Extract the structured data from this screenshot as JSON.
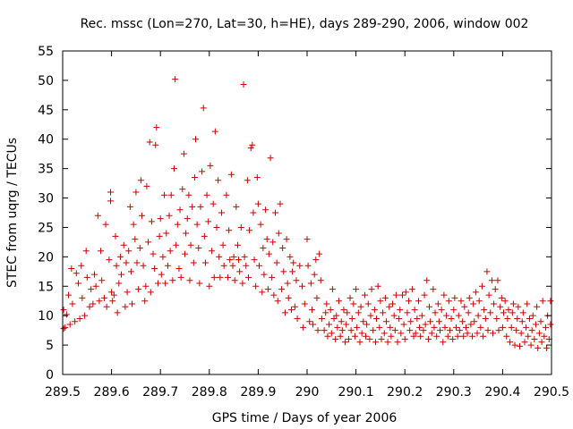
{
  "chart_data": {
    "type": "scatter",
    "title": "Rec. mssc (Lon=270, Lat=30, h=HE), days 289-290, 2006, window 002",
    "xlabel": "GPS time / Days of year 2006",
    "ylabel": "STEC from uqrg / TECUs",
    "xlim": [
      289.5,
      290.5
    ],
    "ylim": [
      0,
      55
    ],
    "x_ticks": [
      289.5,
      289.6,
      289.7,
      289.8,
      289.9,
      290,
      290.1,
      290.2,
      290.3,
      290.4,
      290.5
    ],
    "x_tick_labels": [
      "289.5",
      "289.6",
      "289.7",
      "289.8",
      "289.9",
      "290",
      "290.1",
      "290.2",
      "290.3",
      "290.4",
      "290.5"
    ],
    "y_ticks": [
      0,
      5,
      10,
      15,
      20,
      25,
      30,
      35,
      40,
      45,
      50,
      55
    ],
    "y_tick_labels": [
      "0",
      "5",
      "10",
      "15",
      "20",
      "25",
      "30",
      "35",
      "40",
      "45",
      "50",
      "55"
    ],
    "grid": false,
    "marker": "+",
    "color": "#cc0000",
    "points": [
      [
        289.502,
        7.8
      ],
      [
        289.502,
        11.0
      ],
      [
        289.505,
        8.0
      ],
      [
        289.508,
        10.2
      ],
      [
        289.512,
        13.5
      ],
      [
        289.515,
        8.5
      ],
      [
        289.518,
        18.0
      ],
      [
        289.52,
        12.0
      ],
      [
        289.525,
        9.0
      ],
      [
        289.528,
        17.2
      ],
      [
        289.532,
        15.5
      ],
      [
        289.535,
        9.5
      ],
      [
        289.538,
        18.5
      ],
      [
        289.54,
        13.0
      ],
      [
        289.545,
        10.0
      ],
      [
        289.548,
        21.0
      ],
      [
        289.55,
        16.5
      ],
      [
        289.555,
        11.5
      ],
      [
        289.558,
        14.5
      ],
      [
        289.562,
        12.0
      ],
      [
        289.565,
        17.0
      ],
      [
        289.568,
        15.0
      ],
      [
        289.572,
        27.0
      ],
      [
        289.575,
        12.5
      ],
      [
        289.578,
        21.0
      ],
      [
        289.58,
        16.0
      ],
      [
        289.585,
        13.0
      ],
      [
        289.588,
        25.5
      ],
      [
        289.59,
        11.5
      ],
      [
        289.595,
        19.5
      ],
      [
        289.598,
        31.0
      ],
      [
        289.598,
        29.5
      ],
      [
        289.6,
        14.0
      ],
      [
        289.602,
        12.5
      ],
      [
        289.605,
        13.5
      ],
      [
        289.608,
        23.5
      ],
      [
        289.61,
        18.5
      ],
      [
        289.612,
        10.5
      ],
      [
        289.615,
        15.5
      ],
      [
        289.618,
        20.0
      ],
      [
        289.62,
        17.0
      ],
      [
        289.625,
        22.0
      ],
      [
        289.628,
        11.5
      ],
      [
        289.63,
        19.0
      ],
      [
        289.632,
        14.0
      ],
      [
        289.635,
        21.0
      ],
      [
        289.638,
        28.5
      ],
      [
        289.64,
        17.5
      ],
      [
        289.642,
        12.0
      ],
      [
        289.645,
        25.5
      ],
      [
        289.648,
        23.0
      ],
      [
        289.65,
        31.0
      ],
      [
        289.652,
        19.0
      ],
      [
        289.655,
        14.5
      ],
      [
        289.658,
        21.5
      ],
      [
        289.66,
        33.0
      ],
      [
        289.662,
        27.0
      ],
      [
        289.665,
        18.5
      ],
      [
        289.668,
        12.5
      ],
      [
        289.67,
        15.0
      ],
      [
        289.672,
        32.0
      ],
      [
        289.675,
        22.5
      ],
      [
        289.678,
        39.5
      ],
      [
        289.68,
        14.0
      ],
      [
        289.682,
        26.0
      ],
      [
        289.685,
        20.5
      ],
      [
        289.688,
        18.0
      ],
      [
        289.69,
        39.0
      ],
      [
        289.692,
        42.0
      ],
      [
        289.695,
        15.5
      ],
      [
        289.698,
        23.5
      ],
      [
        289.7,
        26.5
      ],
      [
        289.702,
        17.0
      ],
      [
        289.705,
        20.0
      ],
      [
        289.708,
        30.5
      ],
      [
        289.71,
        15.5
      ],
      [
        289.712,
        24.0
      ],
      [
        289.715,
        18.5
      ],
      [
        289.718,
        27.0
      ],
      [
        289.72,
        21.0
      ],
      [
        289.722,
        30.5
      ],
      [
        289.725,
        16.0
      ],
      [
        289.728,
        35.0
      ],
      [
        289.73,
        50.2
      ],
      [
        289.732,
        22.0
      ],
      [
        289.735,
        25.5
      ],
      [
        289.738,
        18.0
      ],
      [
        289.74,
        28.0
      ],
      [
        289.742,
        16.5
      ],
      [
        289.745,
        31.5
      ],
      [
        289.748,
        37.5
      ],
      [
        289.75,
        20.5
      ],
      [
        289.752,
        24.0
      ],
      [
        289.755,
        26.5
      ],
      [
        289.758,
        30.5
      ],
      [
        289.76,
        16.0
      ],
      [
        289.762,
        22.0
      ],
      [
        289.765,
        28.5
      ],
      [
        289.768,
        19.0
      ],
      [
        289.77,
        33.5
      ],
      [
        289.772,
        40.0
      ],
      [
        289.775,
        25.5
      ],
      [
        289.778,
        21.5
      ],
      [
        289.78,
        15.5
      ],
      [
        289.782,
        28.5
      ],
      [
        289.785,
        34.5
      ],
      [
        289.788,
        45.3
      ],
      [
        289.79,
        23.5
      ],
      [
        289.792,
        19.0
      ],
      [
        289.795,
        30.5
      ],
      [
        289.798,
        26.0
      ],
      [
        289.8,
        15.0
      ],
      [
        289.802,
        35.5
      ],
      [
        289.805,
        21.0
      ],
      [
        289.808,
        29.0
      ],
      [
        289.81,
        16.5
      ],
      [
        289.812,
        41.3
      ],
      [
        289.815,
        25.0
      ],
      [
        289.818,
        33.0
      ],
      [
        289.82,
        20.0
      ],
      [
        289.822,
        16.5
      ],
      [
        289.825,
        27.5
      ],
      [
        289.828,
        22.0
      ],
      [
        289.83,
        18.5
      ],
      [
        289.835,
        30.5
      ],
      [
        289.838,
        16.5
      ],
      [
        289.84,
        24.5
      ],
      [
        289.842,
        19.5
      ],
      [
        289.845,
        34.0
      ],
      [
        289.848,
        18.5
      ],
      [
        289.85,
        20.0
      ],
      [
        289.852,
        16.0
      ],
      [
        289.855,
        28.5
      ],
      [
        289.858,
        22.0
      ],
      [
        289.86,
        19.5
      ],
      [
        289.862,
        17.5
      ],
      [
        289.865,
        25.0
      ],
      [
        289.868,
        15.5
      ],
      [
        289.87,
        49.3
      ],
      [
        289.872,
        20.0
      ],
      [
        289.875,
        18.5
      ],
      [
        289.878,
        33.0
      ],
      [
        289.88,
        16.5
      ],
      [
        289.882,
        24.5
      ],
      [
        289.885,
        38.5
      ],
      [
        289.888,
        39.0
      ],
      [
        289.89,
        27.5
      ],
      [
        289.892,
        19.5
      ],
      [
        289.895,
        15.0
      ],
      [
        289.898,
        33.5
      ],
      [
        289.9,
        29.0
      ],
      [
        289.902,
        18.5
      ],
      [
        289.905,
        25.5
      ],
      [
        289.908,
        14.0
      ],
      [
        289.91,
        21.5
      ],
      [
        289.912,
        17.0
      ],
      [
        289.915,
        28.0
      ],
      [
        289.918,
        23.0
      ],
      [
        289.92,
        14.5
      ],
      [
        289.922,
        20.5
      ],
      [
        289.925,
        36.8
      ],
      [
        289.928,
        16.5
      ],
      [
        289.93,
        22.5
      ],
      [
        289.932,
        13.5
      ],
      [
        289.935,
        27.5
      ],
      [
        289.938,
        19.0
      ],
      [
        289.94,
        12.5
      ],
      [
        289.942,
        24.0
      ],
      [
        289.945,
        29.0
      ],
      [
        289.948,
        14.5
      ],
      [
        289.95,
        21.5
      ],
      [
        289.952,
        17.5
      ],
      [
        289.955,
        10.5
      ],
      [
        289.958,
        23.0
      ],
      [
        289.96,
        15.5
      ],
      [
        289.962,
        13.0
      ],
      [
        289.965,
        20.0
      ],
      [
        289.968,
        11.0
      ],
      [
        289.97,
        17.5
      ],
      [
        289.972,
        19.0
      ],
      [
        289.975,
        11.5
      ],
      [
        289.978,
        16.0
      ],
      [
        289.98,
        9.5
      ],
      [
        289.985,
        18.5
      ],
      [
        289.99,
        15.0
      ],
      [
        289.992,
        8.0
      ],
      [
        289.995,
        12.0
      ],
      [
        290.0,
        23.0
      ],
      [
        290.002,
        18.5
      ],
      [
        290.005,
        9.0
      ],
      [
        290.008,
        15.5
      ],
      [
        290.01,
        11.0
      ],
      [
        290.012,
        8.5
      ],
      [
        290.015,
        17.0
      ],
      [
        290.018,
        19.5
      ],
      [
        290.02,
        13.0
      ],
      [
        290.022,
        7.5
      ],
      [
        290.025,
        20.5
      ],
      [
        290.028,
        16.0
      ],
      [
        290.03,
        9.5
      ],
      [
        290.035,
        7.5
      ],
      [
        290.038,
        10.5
      ],
      [
        290.04,
        12.0
      ],
      [
        290.042,
        6.5
      ],
      [
        290.045,
        8.5
      ],
      [
        290.048,
        11.0
      ],
      [
        290.05,
        7.0
      ],
      [
        290.052,
        14.5
      ],
      [
        290.055,
        9.5
      ],
      [
        290.058,
        6.0
      ],
      [
        290.06,
        10.0
      ],
      [
        290.062,
        8.0
      ],
      [
        290.065,
        12.5
      ],
      [
        290.068,
        6.5
      ],
      [
        290.07,
        9.0
      ],
      [
        290.072,
        7.5
      ],
      [
        290.075,
        11.0
      ],
      [
        290.078,
        5.5
      ],
      [
        290.08,
        8.5
      ],
      [
        290.082,
        10.5
      ],
      [
        290.085,
        6.0
      ],
      [
        290.088,
        13.0
      ],
      [
        290.09,
        7.5
      ],
      [
        290.092,
        9.5
      ],
      [
        290.095,
        12.0
      ],
      [
        290.098,
        6.5
      ],
      [
        290.1,
        14.5
      ],
      [
        290.102,
        8.0
      ],
      [
        290.105,
        10.5
      ],
      [
        290.108,
        5.5
      ],
      [
        290.11,
        11.5
      ],
      [
        290.112,
        7.0
      ],
      [
        290.115,
        9.0
      ],
      [
        290.118,
        13.5
      ],
      [
        290.12,
        6.5
      ],
      [
        290.122,
        8.5
      ],
      [
        290.125,
        12.0
      ],
      [
        290.128,
        6.0
      ],
      [
        290.13,
        10.0
      ],
      [
        290.132,
        14.5
      ],
      [
        290.135,
        7.5
      ],
      [
        290.138,
        11.0
      ],
      [
        290.14,
        5.5
      ],
      [
        290.142,
        9.5
      ],
      [
        290.145,
        15.0
      ],
      [
        290.148,
        8.0
      ],
      [
        290.15,
        12.5
      ],
      [
        290.152,
        6.0
      ],
      [
        290.155,
        10.5
      ],
      [
        290.158,
        7.0
      ],
      [
        290.16,
        13.0
      ],
      [
        290.162,
        9.0
      ],
      [
        290.165,
        5.5
      ],
      [
        290.168,
        11.5
      ],
      [
        290.17,
        8.0
      ],
      [
        290.172,
        6.5
      ],
      [
        290.175,
        12.0
      ],
      [
        290.178,
        10.0
      ],
      [
        290.18,
        7.5
      ],
      [
        290.182,
        13.5
      ],
      [
        290.185,
        5.5
      ],
      [
        290.188,
        9.5
      ],
      [
        290.19,
        11.0
      ],
      [
        290.192,
        7.0
      ],
      [
        290.195,
        13.5
      ],
      [
        290.198,
        8.5
      ],
      [
        290.2,
        6.0
      ],
      [
        290.202,
        14.0
      ],
      [
        290.205,
        10.5
      ],
      [
        290.208,
        12.5
      ],
      [
        290.21,
        7.5
      ],
      [
        290.212,
        9.0
      ],
      [
        290.215,
        14.5
      ],
      [
        290.218,
        6.5
      ],
      [
        290.22,
        11.0
      ],
      [
        290.222,
        7.0
      ],
      [
        290.225,
        9.5
      ],
      [
        290.228,
        12.5
      ],
      [
        290.23,
        8.0
      ],
      [
        290.232,
        6.5
      ],
      [
        290.235,
        10.0
      ],
      [
        290.238,
        7.5
      ],
      [
        290.24,
        13.5
      ],
      [
        290.242,
        8.5
      ],
      [
        290.245,
        16.0
      ],
      [
        290.248,
        6.0
      ],
      [
        290.25,
        11.5
      ],
      [
        290.252,
        9.0
      ],
      [
        290.255,
        7.0
      ],
      [
        290.258,
        14.5
      ],
      [
        290.26,
        8.0
      ],
      [
        290.262,
        10.5
      ],
      [
        290.265,
        6.5
      ],
      [
        290.268,
        12.0
      ],
      [
        290.27,
        9.0
      ],
      [
        290.272,
        7.5
      ],
      [
        290.275,
        11.0
      ],
      [
        290.278,
        5.5
      ],
      [
        290.28,
        13.5
      ],
      [
        290.282,
        8.0
      ],
      [
        290.285,
        10.0
      ],
      [
        290.288,
        6.5
      ],
      [
        290.29,
        12.5
      ],
      [
        290.292,
        7.5
      ],
      [
        290.295,
        9.5
      ],
      [
        290.298,
        6.0
      ],
      [
        290.3,
        11.0
      ],
      [
        290.302,
        13.0
      ],
      [
        290.305,
        8.0
      ],
      [
        290.308,
        6.5
      ],
      [
        290.31,
        10.0
      ],
      [
        290.312,
        7.5
      ],
      [
        290.315,
        12.5
      ],
      [
        290.318,
        9.0
      ],
      [
        290.32,
        6.5
      ],
      [
        290.322,
        11.5
      ],
      [
        290.325,
        8.0
      ],
      [
        290.328,
        7.0
      ],
      [
        290.33,
        10.5
      ],
      [
        290.332,
        13.0
      ],
      [
        290.335,
        8.5
      ],
      [
        290.338,
        6.5
      ],
      [
        290.34,
        12.0
      ],
      [
        290.342,
        9.0
      ],
      [
        290.345,
        14.0
      ],
      [
        290.348,
        7.0
      ],
      [
        290.35,
        10.0
      ],
      [
        290.352,
        12.5
      ],
      [
        290.355,
        8.0
      ],
      [
        290.358,
        15.0
      ],
      [
        290.36,
        6.5
      ],
      [
        290.362,
        11.0
      ],
      [
        290.365,
        9.5
      ],
      [
        290.368,
        17.5
      ],
      [
        290.37,
        7.5
      ],
      [
        290.372,
        13.5
      ],
      [
        290.375,
        10.5
      ],
      [
        290.378,
        16.0
      ],
      [
        290.38,
        7.0
      ],
      [
        290.382,
        12.0
      ],
      [
        290.385,
        14.5
      ],
      [
        290.388,
        9.5
      ],
      [
        290.39,
        16.0
      ],
      [
        290.392,
        7.5
      ],
      [
        290.395,
        11.5
      ],
      [
        290.398,
        13.0
      ],
      [
        290.4,
        8.0
      ],
      [
        290.402,
        10.5
      ],
      [
        290.405,
        12.5
      ],
      [
        290.408,
        6.5
      ],
      [
        290.41,
        9.5
      ],
      [
        290.412,
        11.0
      ],
      [
        290.415,
        5.5
      ],
      [
        290.418,
        8.0
      ],
      [
        290.42,
        10.5
      ],
      [
        290.422,
        12.0
      ],
      [
        290.425,
        5.0
      ],
      [
        290.428,
        7.5
      ],
      [
        290.43,
        9.5
      ],
      [
        290.432,
        11.5
      ],
      [
        290.435,
        4.8
      ],
      [
        290.438,
        7.0
      ],
      [
        290.44,
        9.0
      ],
      [
        290.442,
        10.5
      ],
      [
        290.445,
        5.5
      ],
      [
        290.448,
        8.0
      ],
      [
        290.45,
        12.0
      ],
      [
        290.452,
        6.5
      ],
      [
        290.455,
        9.5
      ],
      [
        290.458,
        5.0
      ],
      [
        290.46,
        7.5
      ],
      [
        290.462,
        10.0
      ],
      [
        290.465,
        6.0
      ],
      [
        290.468,
        8.5
      ],
      [
        290.47,
        11.5
      ],
      [
        290.472,
        4.5
      ],
      [
        290.475,
        7.0
      ],
      [
        290.478,
        9.0
      ],
      [
        290.48,
        5.5
      ],
      [
        290.482,
        12.5
      ],
      [
        290.485,
        6.5
      ],
      [
        290.488,
        8.0
      ],
      [
        290.49,
        4.5
      ],
      [
        290.492,
        10.0
      ],
      [
        290.495,
        6.0
      ],
      [
        290.498,
        8.5
      ],
      [
        290.498,
        12.5
      ]
    ]
  }
}
